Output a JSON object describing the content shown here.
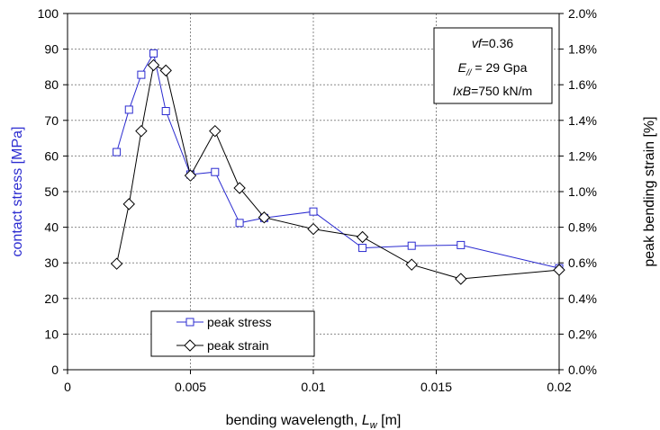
{
  "chart_data": {
    "type": "line",
    "xlabel_main": "bending wavelength, ",
    "xlabel_sym": "L",
    "xlabel_sub": "w",
    "xlabel_unit": " [m]",
    "ylabel": "contact stress [MPa]",
    "y2label": "peak bending strain [%]",
    "xlim": [
      0,
      0.02
    ],
    "ylim": [
      0,
      100
    ],
    "y2lim": [
      0,
      2.0
    ],
    "x_ticks": [
      0,
      0.005,
      0.01,
      0.015,
      0.02
    ],
    "x_tick_labels": [
      "0",
      "0.005",
      "0.01",
      "0.015",
      "0.02"
    ],
    "y_ticks": [
      0,
      10,
      20,
      30,
      40,
      50,
      60,
      70,
      80,
      90,
      100
    ],
    "y_tick_labels": [
      "0",
      "10",
      "20",
      "30",
      "40",
      "50",
      "60",
      "70",
      "80",
      "90",
      "100"
    ],
    "y2_ticks": [
      0,
      0.2,
      0.4,
      0.6,
      0.8,
      1.0,
      1.2,
      1.4,
      1.6,
      1.8,
      2.0
    ],
    "y2_tick_labels": [
      "0.0%",
      "0.2%",
      "0.4%",
      "0.6%",
      "0.8%",
      "1.0%",
      "1.2%",
      "1.4%",
      "1.6%",
      "1.8%",
      "2.0%"
    ],
    "grid": true,
    "legend_position": "bottom-left",
    "colors": {
      "stress": "#2b2bd0",
      "strain": "#000000",
      "ylabel": "#2b2bd0"
    },
    "series": [
      {
        "name": "peak stress",
        "axis": "left",
        "marker": "square",
        "x": [
          0.002,
          0.0025,
          0.003,
          0.0035,
          0.004,
          0.005,
          0.006,
          0.007,
          0.008,
          0.01,
          0.012,
          0.014,
          0.016,
          0.02
        ],
        "y": [
          61.1,
          73.0,
          82.8,
          88.8,
          72.6,
          54.8,
          55.5,
          41.2,
          42.6,
          44.4,
          34.2,
          34.8,
          35.0,
          28.5
        ]
      },
      {
        "name": "peak strain",
        "axis": "right",
        "marker": "diamond",
        "x": [
          0.002,
          0.0025,
          0.003,
          0.0035,
          0.004,
          0.005,
          0.006,
          0.007,
          0.008,
          0.01,
          0.012,
          0.014,
          0.016,
          0.02
        ],
        "y": [
          0.595,
          0.93,
          1.34,
          1.71,
          1.68,
          1.09,
          1.34,
          1.02,
          0.855,
          0.79,
          0.745,
          0.59,
          0.51,
          0.56
        ]
      }
    ],
    "annotation": [
      {
        "prefix": "",
        "sym": "vf",
        "sub": "",
        "rest": "=0.36"
      },
      {
        "prefix": "",
        "sym": "E",
        "sub": "//",
        "rest": " = 29 Gpa"
      },
      {
        "prefix": "",
        "sym": "IxB",
        "sub": "",
        "rest": "=750 kN/m"
      }
    ]
  }
}
